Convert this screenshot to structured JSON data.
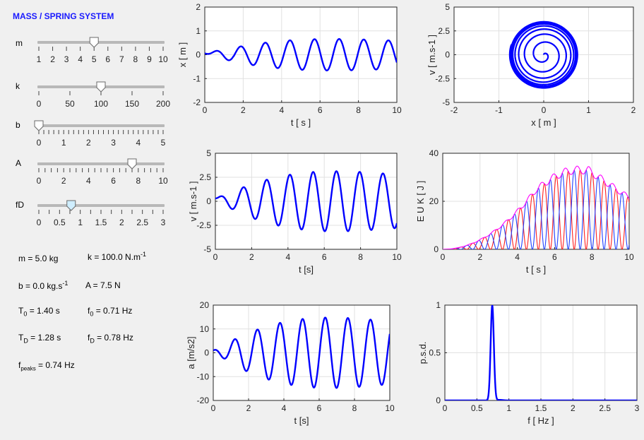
{
  "title": "MASS / SPRING SYSTEM",
  "sliders": [
    {
      "label": "m",
      "min": 1,
      "max": 10,
      "value": 5,
      "ticks": [
        "1",
        "2",
        "3",
        "4",
        "5",
        "6",
        "7",
        "8",
        "9",
        "10"
      ],
      "minorTicks": 9,
      "thumbColor": "#ffffff"
    },
    {
      "label": "k",
      "min": 0,
      "max": 200,
      "value": 100,
      "ticks": [
        "0",
        "50",
        "100",
        "150",
        "200"
      ],
      "minorTicks": 4,
      "thumbColor": "#ffffff"
    },
    {
      "label": "b",
      "min": 0,
      "max": 5,
      "value": 0,
      "ticks": [
        "0",
        "1",
        "2",
        "3",
        "4",
        "5"
      ],
      "minorTicks": 25,
      "thumbColor": "#ffffff"
    },
    {
      "label": "A",
      "min": 0,
      "max": 10,
      "value": 7.5,
      "ticks": [
        "0",
        "2",
        "4",
        "6",
        "8",
        "10"
      ],
      "minorTicks": 20,
      "thumbColor": "#ffffff"
    },
    {
      "label": "fD",
      "min": 0,
      "max": 3,
      "value": 0.78,
      "ticks": [
        "0",
        "0.5",
        "1",
        "1.5",
        "2",
        "2.5",
        "3"
      ],
      "minorTicks": 12,
      "thumbColor": "#cfeeff"
    }
  ],
  "info": {
    "m": "m = 5.0 kg",
    "k": "k  =  100.0  N.m",
    "k_sup": "-1",
    "b": "b  =  0.0  kg.s",
    "b_sup": "-1",
    "A": "A = 7.5 N",
    "T0": "T",
    "T0_sub": "0",
    "T0_val": "  =  1.40  s",
    "f0": "f",
    "f0_sub": "0",
    "f0_val": "  =  0.71  Hz",
    "TD": "T",
    "TD_sub": "D",
    "TD_val": "  =  1.28  s",
    "fD": "f",
    "fD_sub": "D",
    "fD_val": "  =  0.78  Hz",
    "fpeaks": "f",
    "fpeaks_sub": "peaks",
    "fpeaks_val": "  =  0.74  Hz"
  },
  "colors": {
    "series": "#0000ff",
    "kinetic": "#ff2020",
    "potential": "#2040ff",
    "total": "#ff00ff",
    "title": "#1a1aff"
  },
  "chart_data": [
    {
      "id": "x-t",
      "type": "line",
      "xlabel": "t  [ s ]",
      "ylabel": "x  [ m ]",
      "xlim": [
        0,
        10
      ],
      "ylim": [
        -2,
        2
      ],
      "xticks": [
        0,
        2,
        4,
        6,
        8,
        10
      ],
      "yticks": [
        -2,
        -1,
        0,
        1,
        2
      ],
      "grid": true,
      "series": [
        {
          "kind": "driven",
          "amplitude": 0.76,
          "freq": 0.78,
          "ramp": 6.5,
          "peak_times": [
            0.75,
            2.0,
            3.3,
            4.6,
            6.0,
            7.35,
            8.6,
            10
          ],
          "peak_values": [
            0.1,
            0.35,
            0.5,
            0.62,
            0.7,
            0.76,
            0.76,
            0.62
          ]
        }
      ]
    },
    {
      "id": "v-x",
      "type": "line",
      "xlabel": "x  [ m ]",
      "ylabel": "v  [ m.s-1 ]",
      "xlim": [
        -2,
        2
      ],
      "ylim": [
        -5,
        5
      ],
      "xticks": [
        -2,
        -1,
        0,
        1,
        2
      ],
      "yticks": [
        -5,
        -2.5,
        0,
        2.5,
        5
      ],
      "grid": true,
      "series": [
        {
          "kind": "spiral",
          "max_x": 0.78,
          "max_v": 3.6
        }
      ]
    },
    {
      "id": "v-t",
      "type": "line",
      "xlabel": "t  [s]",
      "ylabel": "v  [ m.s-1 ]",
      "xlim": [
        0,
        10
      ],
      "ylim": [
        -5,
        5
      ],
      "xticks": [
        0,
        2,
        4,
        6,
        8,
        10
      ],
      "yticks": [
        -5,
        -2.5,
        0,
        2.5,
        5
      ],
      "grid": true,
      "series": [
        {
          "kind": "driven",
          "amplitude": 3.6,
          "freq": 0.78,
          "ramp": 6.5
        }
      ]
    },
    {
      "id": "E-t",
      "type": "line",
      "xlabel": "t  [ s ]",
      "ylabel": "E U K  [ J ]",
      "xlim": [
        0,
        10
      ],
      "ylim": [
        0,
        40
      ],
      "xticks": [
        0,
        2,
        4,
        6,
        8,
        10
      ],
      "yticks": [
        0,
        20,
        40
      ],
      "grid": true,
      "series": [
        {
          "name": "K",
          "kind": "kinetic",
          "peak": 33
        },
        {
          "name": "U",
          "kind": "potential",
          "peak": 33
        },
        {
          "name": "E",
          "kind": "total",
          "peak": 33
        }
      ]
    },
    {
      "id": "a-t",
      "type": "line",
      "xlabel": "t  [s]",
      "ylabel": "a  [m/s2]",
      "xlim": [
        0,
        10
      ],
      "ylim": [
        -20,
        20
      ],
      "xticks": [
        0,
        2,
        4,
        6,
        8,
        10
      ],
      "yticks": [
        -20,
        -10,
        0,
        10,
        20
      ],
      "grid": true,
      "series": [
        {
          "kind": "driven",
          "amplitude": 17,
          "freq": 0.78,
          "ramp": 6.5
        }
      ]
    },
    {
      "id": "psd",
      "type": "line",
      "xlabel": "f  [ Hz ]",
      "ylabel": "p.s.d.",
      "xlim": [
        0,
        3
      ],
      "ylim": [
        0,
        1
      ],
      "xticks": [
        0,
        0.5,
        1,
        1.5,
        2,
        2.5,
        3
      ],
      "yticks": [
        0,
        0.5,
        1
      ],
      "grid": true,
      "series": [
        {
          "kind": "peak",
          "center": 0.74,
          "width": 0.035,
          "peak": 1
        }
      ]
    }
  ]
}
